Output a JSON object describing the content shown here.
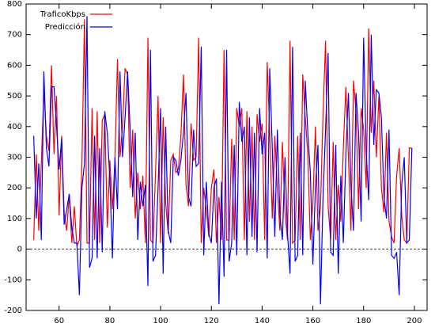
{
  "chart_data": {
    "type": "line",
    "x": [
      50,
      51,
      52,
      53,
      54,
      55,
      56,
      57,
      58,
      59,
      60,
      61,
      62,
      63,
      64,
      65,
      66,
      67,
      68,
      69,
      70,
      71,
      72,
      73,
      74,
      75,
      76,
      77,
      78,
      79,
      80,
      81,
      82,
      83,
      84,
      85,
      86,
      87,
      88,
      89,
      90,
      91,
      92,
      93,
      94,
      95,
      96,
      97,
      98,
      99,
      100,
      101,
      102,
      103,
      104,
      105,
      106,
      107,
      108,
      109,
      110,
      111,
      112,
      113,
      114,
      115,
      116,
      117,
      118,
      119,
      120,
      121,
      122,
      123,
      124,
      125,
      126,
      127,
      128,
      129,
      130,
      131,
      132,
      133,
      134,
      135,
      136,
      137,
      138,
      139,
      140,
      141,
      142,
      143,
      144,
      145,
      146,
      147,
      148,
      149,
      150,
      151,
      152,
      153,
      154,
      155,
      156,
      157,
      158,
      159,
      160,
      161,
      162,
      163,
      164,
      165,
      166,
      167,
      168,
      169,
      170,
      171,
      172,
      173,
      174,
      175,
      176,
      177,
      178,
      179,
      180,
      181,
      182,
      183,
      184,
      185,
      186,
      187,
      188,
      189,
      190,
      191,
      192,
      193,
      194,
      195,
      196,
      197,
      198,
      199
    ],
    "series": [
      {
        "name": "TraficoKbps",
        "color": "#ff0000",
        "values": [
          30,
          310,
          60,
          280,
          520,
          370,
          320,
          600,
          310,
          500,
          110,
          370,
          120,
          60,
          180,
          20,
          140,
          10,
          30,
          280,
          750,
          20,
          20,
          460,
          30,
          450,
          20,
          420,
          440,
          70,
          290,
          130,
          290,
          620,
          300,
          400,
          590,
          570,
          200,
          390,
          100,
          250,
          130,
          240,
          20,
          690,
          30,
          20,
          250,
          500,
          20,
          430,
          150,
          50,
          290,
          310,
          250,
          260,
          370,
          570,
          210,
          140,
          410,
          290,
          300,
          690,
          20,
          200,
          130,
          40,
          200,
          260,
          20,
          170,
          30,
          650,
          30,
          30,
          360,
          30,
          460,
          400,
          460,
          30,
          450,
          90,
          400,
          30,
          440,
          350,
          410,
          30,
          610,
          380,
          100,
          370,
          200,
          60,
          350,
          120,
          30,
          680,
          20,
          30,
          370,
          30,
          570,
          430,
          310,
          30,
          150,
          400,
          60,
          140,
          440,
          680,
          140,
          30,
          350,
          30,
          210,
          90,
          330,
          530,
          300,
          60,
          550,
          450,
          130,
          460,
          390,
          200,
          720,
          380,
          550,
          300,
          500,
          200,
          120,
          380,
          90,
          40,
          20,
          240,
          330,
          110,
          30,
          20,
          330,
          330
        ]
      },
      {
        "name": "Predicción",
        "color": "#0000ff",
        "values": [
          370,
          100,
          280,
          30,
          580,
          330,
          270,
          530,
          530,
          400,
          260,
          360,
          80,
          130,
          180,
          70,
          20,
          20,
          -150,
          200,
          280,
          760,
          -60,
          -30,
          370,
          -30,
          330,
          -10,
          450,
          380,
          230,
          -30,
          300,
          130,
          580,
          300,
          430,
          580,
          390,
          170,
          380,
          30,
          220,
          140,
          210,
          -120,
          650,
          -40,
          -20,
          200,
          460,
          -80,
          400,
          60,
          20,
          300,
          290,
          240,
          290,
          380,
          510,
          170,
          140,
          390,
          270,
          280,
          660,
          -20,
          220,
          50,
          20,
          200,
          230,
          -180,
          220,
          -90,
          650,
          -40,
          20,
          340,
          -20,
          480,
          350,
          400,
          -20,
          430,
          40,
          380,
          -10,
          460,
          310,
          380,
          -30,
          590,
          330,
          40,
          390,
          110,
          30,
          300,
          50,
          -80,
          660,
          -40,
          -20,
          380,
          -20,
          550,
          380,
          250,
          -50,
          200,
          340,
          -180,
          170,
          390,
          640,
          -10,
          -20,
          340,
          -80,
          240,
          20,
          310,
          510,
          210,
          60,
          510,
          380,
          90,
          690,
          320,
          160,
          700,
          340,
          520,
          510,
          430,
          170,
          100,
          390,
          -20,
          -30,
          -10,
          -150,
          210,
          300,
          20,
          30,
          330
        ]
      }
    ],
    "xlim": [
      47,
      205
    ],
    "xticks": [
      60,
      80,
      100,
      120,
      140,
      160,
      180,
      200
    ],
    "ylim": [
      -200,
      800
    ],
    "yticks": [
      -200,
      -100,
      0,
      100,
      200,
      300,
      400,
      500,
      600,
      700,
      800
    ],
    "legend": "top-left"
  }
}
